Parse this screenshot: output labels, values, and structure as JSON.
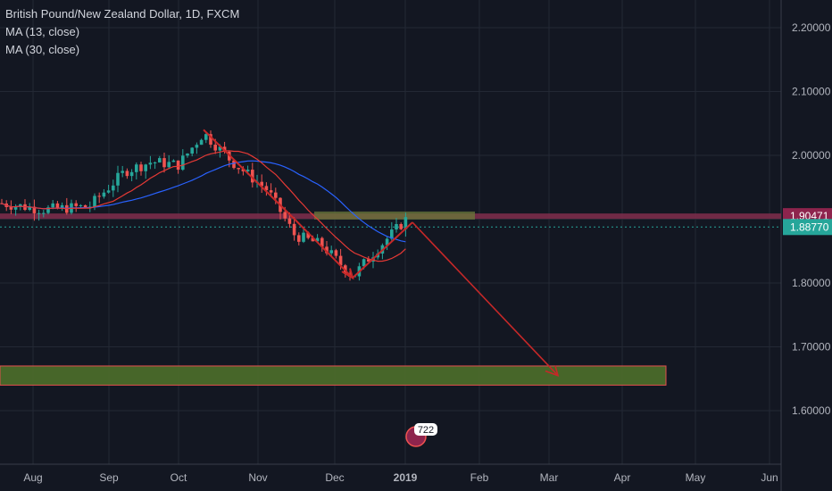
{
  "legend": {
    "symbol": "British Pound/New Zealand Dollar, 1D, FXCM",
    "ma1": "MA (13, close)",
    "ma2": "MA (30, close)"
  },
  "badge": {
    "text": "722"
  },
  "colors": {
    "background": "#131722",
    "grid": "#232834",
    "axis_text": "#b2b5be",
    "up_candle": "#26a69a",
    "down_candle": "#ef5350",
    "ma13": "#e53935",
    "ma30": "#2962ff",
    "drawing": "#c62828",
    "resistance_band": "#7b2c4a",
    "target_zone": "#4a6b2a",
    "price_tag_resistance": "#8e244d",
    "price_tag_current": "#26a69a"
  },
  "chart_data": {
    "type": "candlestick",
    "title": "British Pound/New Zealand Dollar, 1D, FXCM",
    "x_ticks": [
      "Aug",
      "Sep",
      "Oct",
      "Nov",
      "Dec",
      "2019",
      "Feb",
      "Mar",
      "Apr",
      "May",
      "Jun"
    ],
    "y_ticks": [
      "1.60000",
      "1.70000",
      "1.80000",
      "1.90000",
      "2.00000",
      "2.10000",
      "2.20000"
    ],
    "ylim": [
      1.54,
      2.23
    ],
    "series": [
      {
        "name": "MA (13, close)"
      },
      {
        "name": "MA (30, close)"
      }
    ],
    "price_labels": [
      {
        "value": "1.90471",
        "role": "resistance"
      },
      {
        "value": "1.88770",
        "role": "current"
      }
    ],
    "annotations": {
      "resistance_level": 1.9047,
      "target_zone": [
        1.64,
        1.67
      ],
      "projection_end": "Mar",
      "projection_target": 1.655
    }
  }
}
